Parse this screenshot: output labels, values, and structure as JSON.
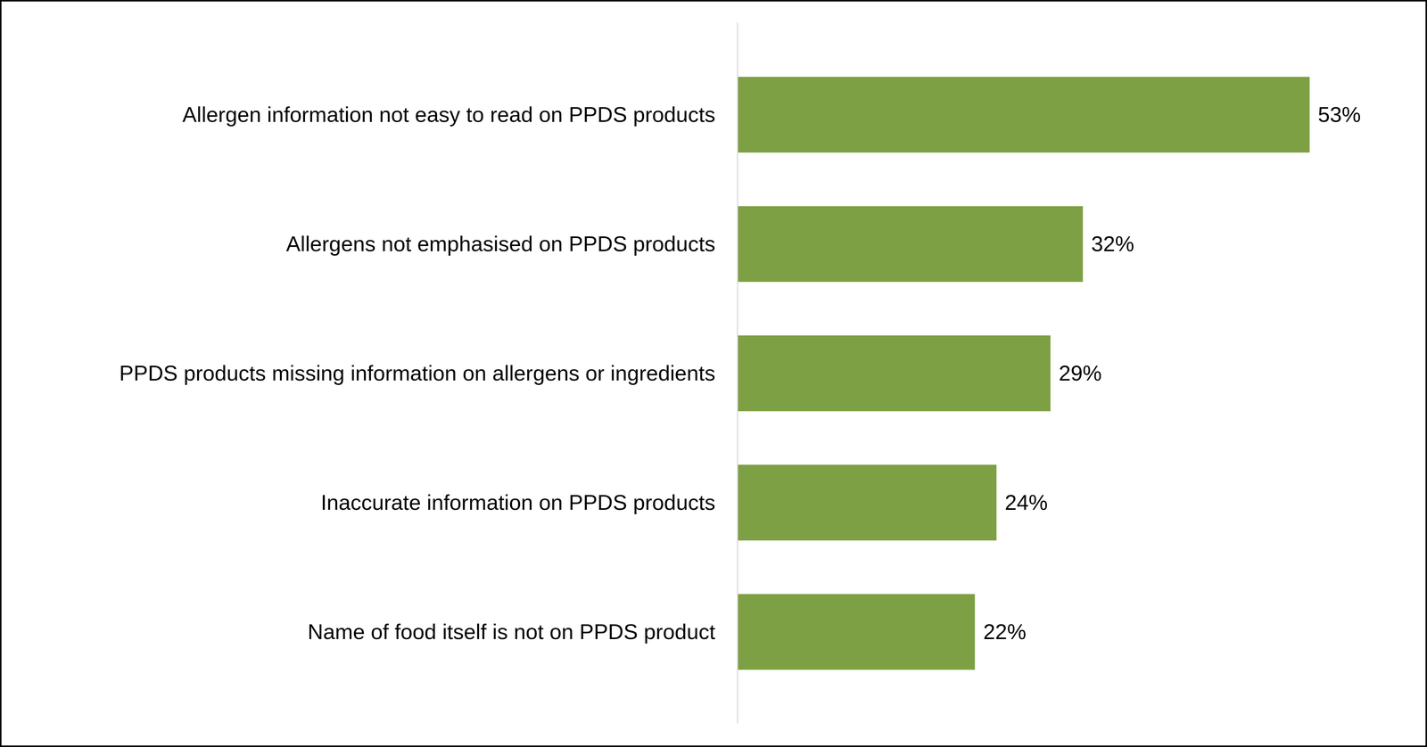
{
  "chart_data": {
    "type": "bar",
    "orientation": "horizontal",
    "categories": [
      "Allergen information not easy to read on PPDS products",
      "Allergens not emphasised on PPDS products",
      "PPDS products missing information on allergens or ingredients",
      "Inaccurate information on PPDS products",
      "Name of food itself is not on PPDS product"
    ],
    "values": [
      53,
      32,
      29,
      24,
      22
    ],
    "value_labels": [
      "53%",
      "32%",
      "29%",
      "24%",
      "22%"
    ],
    "color": "#7ea044",
    "xlim": [
      0,
      60
    ],
    "data_labels": true,
    "tick_labels": "y",
    "grid": false
  }
}
